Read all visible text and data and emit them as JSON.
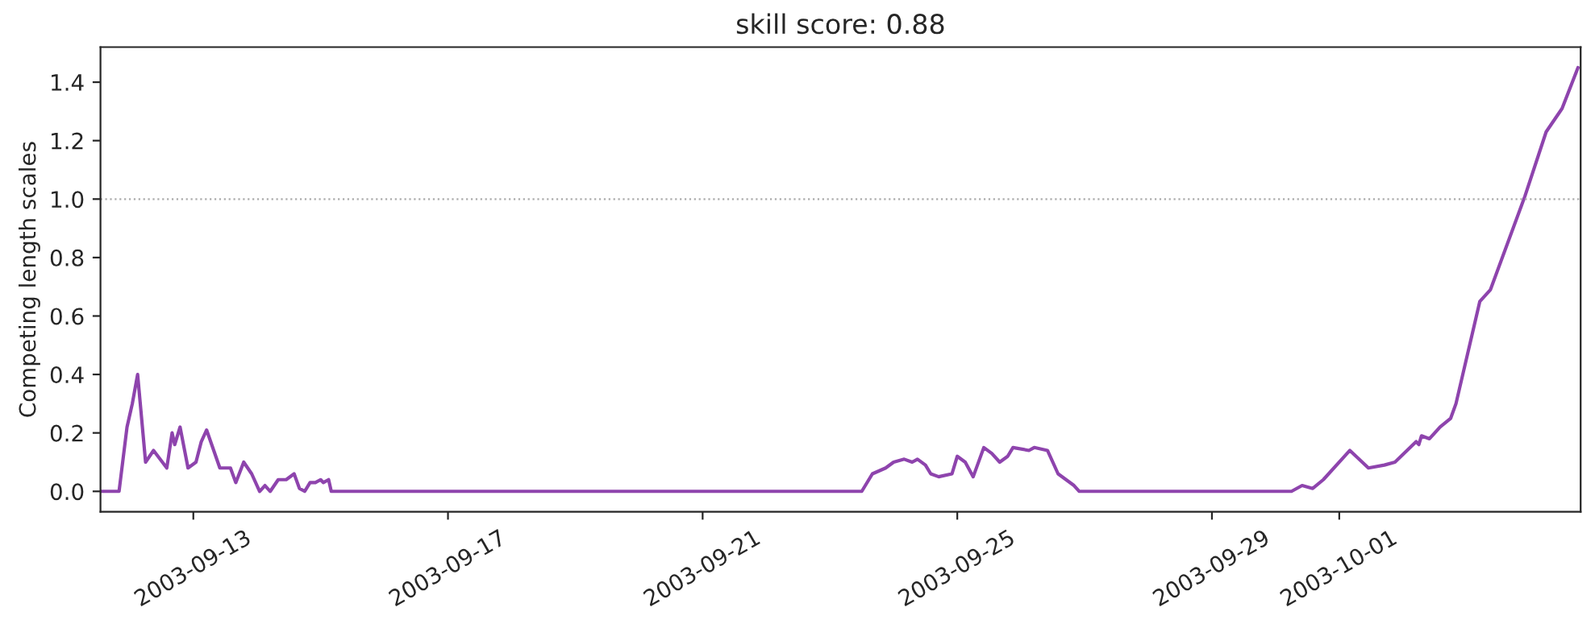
{
  "chart_data": {
    "type": "line",
    "title": "skill score: 0.88",
    "ylabel": "Competing length scales",
    "x": [
      "2003-09-11T13:00",
      "2003-09-11T20:00",
      "2003-09-11T23:00",
      "2003-09-12T01:00",
      "2003-09-12T03:00",
      "2003-09-12T06:00",
      "2003-09-12T09:00",
      "2003-09-12T14:00",
      "2003-09-12T16:00",
      "2003-09-12T17:00",
      "2003-09-12T19:00",
      "2003-09-12T22:00",
      "2003-09-13T01:00",
      "2003-09-13T03:00",
      "2003-09-13T05:00",
      "2003-09-13T10:00",
      "2003-09-13T14:00",
      "2003-09-13T16:00",
      "2003-09-13T19:00",
      "2003-09-13T22:00",
      "2003-09-14T01:00",
      "2003-09-14T03:00",
      "2003-09-14T05:00",
      "2003-09-14T08:00",
      "2003-09-14T11:00",
      "2003-09-14T14:00",
      "2003-09-14T16:00",
      "2003-09-14T18:00",
      "2003-09-14T20:00",
      "2003-09-14T22:00",
      "2003-09-15T00:00",
      "2003-09-15T01:00",
      "2003-09-15T03:00",
      "2003-09-15T04:00",
      "2003-09-23T12:00",
      "2003-09-23T16:00",
      "2003-09-23T21:00",
      "2003-09-24T00:00",
      "2003-09-24T04:00",
      "2003-09-24T07:00",
      "2003-09-24T09:00",
      "2003-09-24T12:00",
      "2003-09-24T14:00",
      "2003-09-24T17:00",
      "2003-09-24T22:00",
      "2003-09-25T00:00",
      "2003-09-25T03:00",
      "2003-09-25T06:00",
      "2003-09-25T10:00",
      "2003-09-25T13:00",
      "2003-09-25T16:00",
      "2003-09-25T19:00",
      "2003-09-25T21:00",
      "2003-09-26T03:00",
      "2003-09-26T05:00",
      "2003-09-26T10:00",
      "2003-09-26T14:00",
      "2003-09-26T20:00",
      "2003-09-26T22:00",
      "2003-09-30T06:00",
      "2003-09-30T10:00",
      "2003-09-30T14:00",
      "2003-09-30T18:00",
      "2003-10-01T04:00",
      "2003-10-01T11:00",
      "2003-10-01T17:00",
      "2003-10-01T21:00",
      "2003-10-02T05:00",
      "2003-10-02T06:00",
      "2003-10-02T07:00",
      "2003-10-02T10:00",
      "2003-10-02T14:00",
      "2003-10-02T18:00",
      "2003-10-02T20:00",
      "2003-10-03T05:00",
      "2003-10-03T09:00",
      "2003-10-03T22:00",
      "2003-10-04T06:00",
      "2003-10-04T09:00",
      "2003-10-04T12:00",
      "2003-10-04T18:00"
    ],
    "series": [
      {
        "color": "#8e44ad",
        "values": [
          0,
          0,
          0.22,
          0.3,
          0.4,
          0.1,
          0.14,
          0.08,
          0.2,
          0.16,
          0.22,
          0.08,
          0.1,
          0.17,
          0.21,
          0.08,
          0.08,
          0.03,
          0.1,
          0.06,
          0,
          0.02,
          0,
          0.04,
          0.04,
          0.06,
          0.01,
          0,
          0.03,
          0.03,
          0.04,
          0.03,
          0.04,
          0,
          0,
          0.06,
          0.08,
          0.1,
          0.11,
          0.1,
          0.11,
          0.09,
          0.06,
          0.05,
          0.06,
          0.12,
          0.1,
          0.05,
          0.15,
          0.13,
          0.1,
          0.12,
          0.15,
          0.14,
          0.15,
          0.14,
          0.06,
          0.02,
          0,
          0,
          0.02,
          0.01,
          0.04,
          0.14,
          0.08,
          0.09,
          0.1,
          0.17,
          0.16,
          0.19,
          0.18,
          0.22,
          0.25,
          0.3,
          0.65,
          0.69,
          1.01,
          1.23,
          1.27,
          1.31,
          1.45
        ]
      }
    ],
    "xlim": [
      "2003-09-11T13:00",
      "2003-10-04T19:00"
    ],
    "xticks": [
      "2003-09-13",
      "2003-09-17",
      "2003-09-21",
      "2003-09-25",
      "2003-09-29",
      "2003-10-01"
    ],
    "ylim": [
      -0.07,
      1.52
    ],
    "yticks": [
      {
        "value": 0,
        "label": "0.0"
      },
      0.2,
      0.4,
      0.6,
      0.8,
      {
        "value": 1,
        "label": "1.0"
      },
      1.2,
      1.4
    ],
    "ref_lines": [
      {
        "axis": "y",
        "value": 1.0,
        "color": "#aaaaaa",
        "line_style": "dotted"
      }
    ],
    "line_style": "solid",
    "marker": "none",
    "grid": false,
    "legend": false
  }
}
